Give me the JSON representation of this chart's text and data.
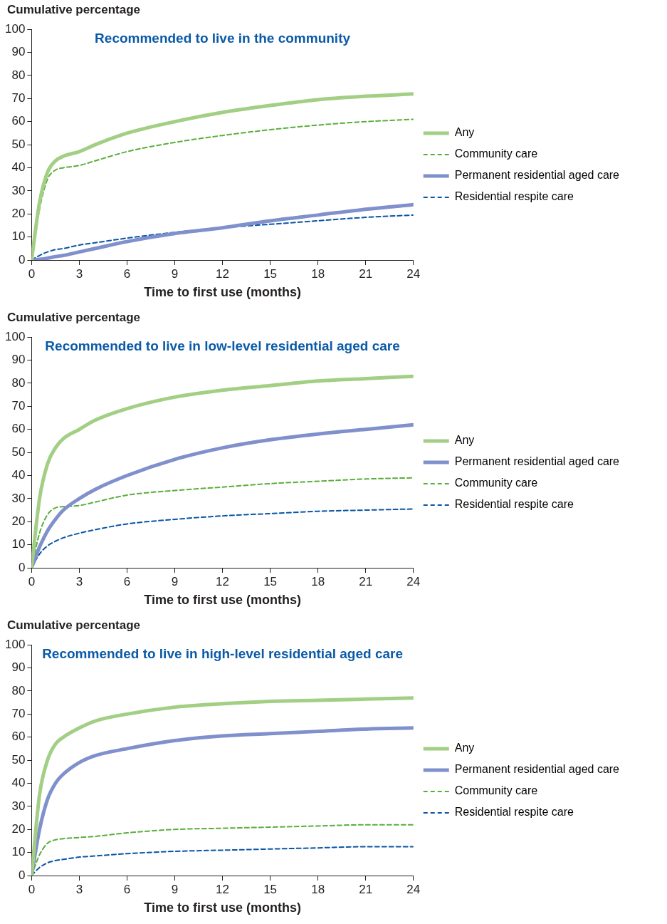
{
  "chart_data": [
    {
      "type": "line",
      "title": "Recommended to live in the community",
      "ylabel": "Cumulative percentage",
      "xlabel": "Time to first use (months)",
      "xlim": [
        0,
        24
      ],
      "xticks": [
        0,
        3,
        6,
        9,
        12,
        15,
        18,
        21,
        24
      ],
      "ylim": [
        0,
        100
      ],
      "yticks": [
        0,
        10,
        20,
        30,
        40,
        50,
        60,
        70,
        80,
        90,
        100
      ],
      "legend": "right",
      "marker": "none",
      "x": [
        0,
        0.5,
        1,
        1.5,
        2,
        3,
        4,
        6,
        9,
        12,
        15,
        18,
        21,
        24
      ],
      "series": [
        {
          "name": "Any",
          "color": "#a3cf85",
          "line_style": "solid",
          "values": [
            0,
            25,
            38,
            43,
            45,
            47,
            50,
            55,
            60,
            64,
            67,
            69.5,
            71,
            72
          ]
        },
        {
          "name": "Community care",
          "color": "#5aae3c",
          "line_style": "dashed",
          "values": [
            0,
            22,
            35,
            39,
            40,
            41,
            43,
            47,
            51,
            54,
            56.5,
            58.5,
            60,
            61
          ]
        },
        {
          "name": "Permanent residential aged care",
          "color": "#8090cc",
          "line_style": "solid",
          "values": [
            0,
            0.3,
            0.8,
            1.5,
            2,
            3.5,
            5,
            8,
            11.5,
            14,
            17,
            19.5,
            22,
            24
          ]
        },
        {
          "name": "Residential respite care",
          "color": "#0a55a4",
          "line_style": "dashed",
          "values": [
            0,
            2,
            3.5,
            4.5,
            5,
            6.5,
            7.5,
            9.5,
            12,
            14,
            15.5,
            17,
            18.5,
            19.5
          ]
        }
      ]
    },
    {
      "type": "line",
      "title": "Recommended to live in low-level residential aged care",
      "ylabel": "Cumulative percentage",
      "xlabel": "Time to first use (months)",
      "xlim": [
        0,
        24
      ],
      "xticks": [
        0,
        3,
        6,
        9,
        12,
        15,
        18,
        21,
        24
      ],
      "ylim": [
        0,
        100
      ],
      "yticks": [
        0,
        10,
        20,
        30,
        40,
        50,
        60,
        70,
        80,
        90,
        100
      ],
      "legend": "right",
      "marker": "none",
      "x": [
        0,
        0.5,
        1,
        1.5,
        2,
        3,
        4,
        6,
        9,
        12,
        15,
        18,
        21,
        24
      ],
      "series": [
        {
          "name": "Any",
          "color": "#a3cf85",
          "line_style": "solid",
          "values": [
            0,
            30,
            45,
            52,
            56,
            60,
            64,
            69,
            74,
            77,
            79,
            81,
            82,
            83
          ]
        },
        {
          "name": "Permanent residential aged care",
          "color": "#8090cc",
          "line_style": "solid",
          "values": [
            0,
            9,
            16,
            21,
            25,
            30,
            34,
            40,
            47,
            52,
            55.5,
            58,
            60,
            62
          ]
        },
        {
          "name": "Community care",
          "color": "#5aae3c",
          "line_style": "dashed",
          "values": [
            0,
            15,
            23,
            26,
            26.5,
            27,
            28.5,
            31.5,
            33.5,
            35,
            36.5,
            37.5,
            38.5,
            39
          ]
        },
        {
          "name": "Residential respite care",
          "color": "#0a55a4",
          "line_style": "dashed",
          "values": [
            0,
            6,
            9.5,
            11.5,
            13,
            15,
            16.5,
            19,
            21,
            22.5,
            23.5,
            24.5,
            25,
            25.5
          ]
        }
      ]
    },
    {
      "type": "line",
      "title": "Recommended to live in high-level residential aged care",
      "ylabel": "Cumulative percentage",
      "xlabel": "Time to first use (months)",
      "xlim": [
        0,
        24
      ],
      "xticks": [
        0,
        3,
        6,
        9,
        12,
        15,
        18,
        21,
        24
      ],
      "ylim": [
        0,
        100
      ],
      "yticks": [
        0,
        10,
        20,
        30,
        40,
        50,
        60,
        70,
        80,
        90,
        100
      ],
      "legend": "right",
      "marker": "none",
      "x": [
        0,
        0.5,
        1,
        1.5,
        2,
        3,
        4,
        6,
        9,
        12,
        15,
        18,
        21,
        24
      ],
      "series": [
        {
          "name": "Any",
          "color": "#a3cf85",
          "line_style": "solid",
          "values": [
            0,
            35,
            50,
            57,
            60,
            64,
            67,
            70,
            73,
            74.5,
            75.5,
            76,
            76.5,
            77
          ]
        },
        {
          "name": "Permanent residential aged care",
          "color": "#8090cc",
          "line_style": "solid",
          "values": [
            0,
            20,
            33,
            40,
            44,
            49,
            52,
            55,
            58.5,
            60.5,
            61.5,
            62.5,
            63.5,
            64
          ]
        },
        {
          "name": "Community care",
          "color": "#5aae3c",
          "line_style": "dashed",
          "values": [
            0,
            9,
            14,
            15.5,
            16,
            16.5,
            17,
            18.5,
            20,
            20.5,
            21,
            21.5,
            22,
            22
          ]
        },
        {
          "name": "Residential respite care",
          "color": "#0a55a4",
          "line_style": "dashed",
          "values": [
            0,
            3.5,
            5.5,
            6.5,
            7,
            8,
            8.5,
            9.5,
            10.5,
            11,
            11.5,
            12,
            12.5,
            12.5
          ]
        }
      ]
    }
  ]
}
